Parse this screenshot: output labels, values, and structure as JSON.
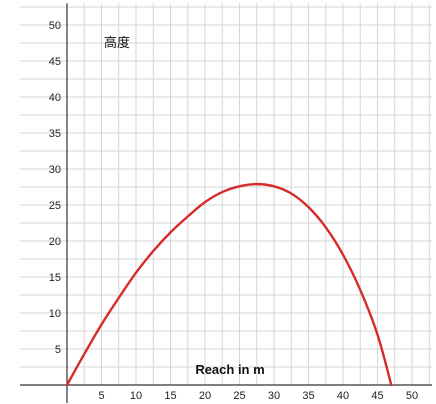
{
  "chart_data": {
    "type": "line",
    "title": "",
    "xlabel": "Reach in m",
    "ylabel": "高度",
    "xlim": [
      0,
      50
    ],
    "ylim": [
      0,
      50
    ],
    "x_ticks": [
      5,
      10,
      15,
      20,
      25,
      30,
      35,
      40,
      45,
      50
    ],
    "y_ticks": [
      5,
      10,
      15,
      20,
      25,
      30,
      35,
      40,
      45,
      50
    ],
    "grid": true,
    "line_color": "#d62b2b",
    "series": [
      {
        "x": [
          0,
          2.5,
          5,
          7.5,
          10,
          12.5,
          15,
          17.5,
          20,
          22.5,
          25,
          27.5,
          30,
          32.5,
          35,
          37.5,
          40,
          42.5,
          45,
          47
        ],
        "y": [
          0,
          4.3,
          8.4,
          12.1,
          15.6,
          18.6,
          21.2,
          23.4,
          25.4,
          26.8,
          27.6,
          27.9,
          27.6,
          26.6,
          24.7,
          21.9,
          18.1,
          13.2,
          7.0,
          0
        ]
      }
    ]
  }
}
